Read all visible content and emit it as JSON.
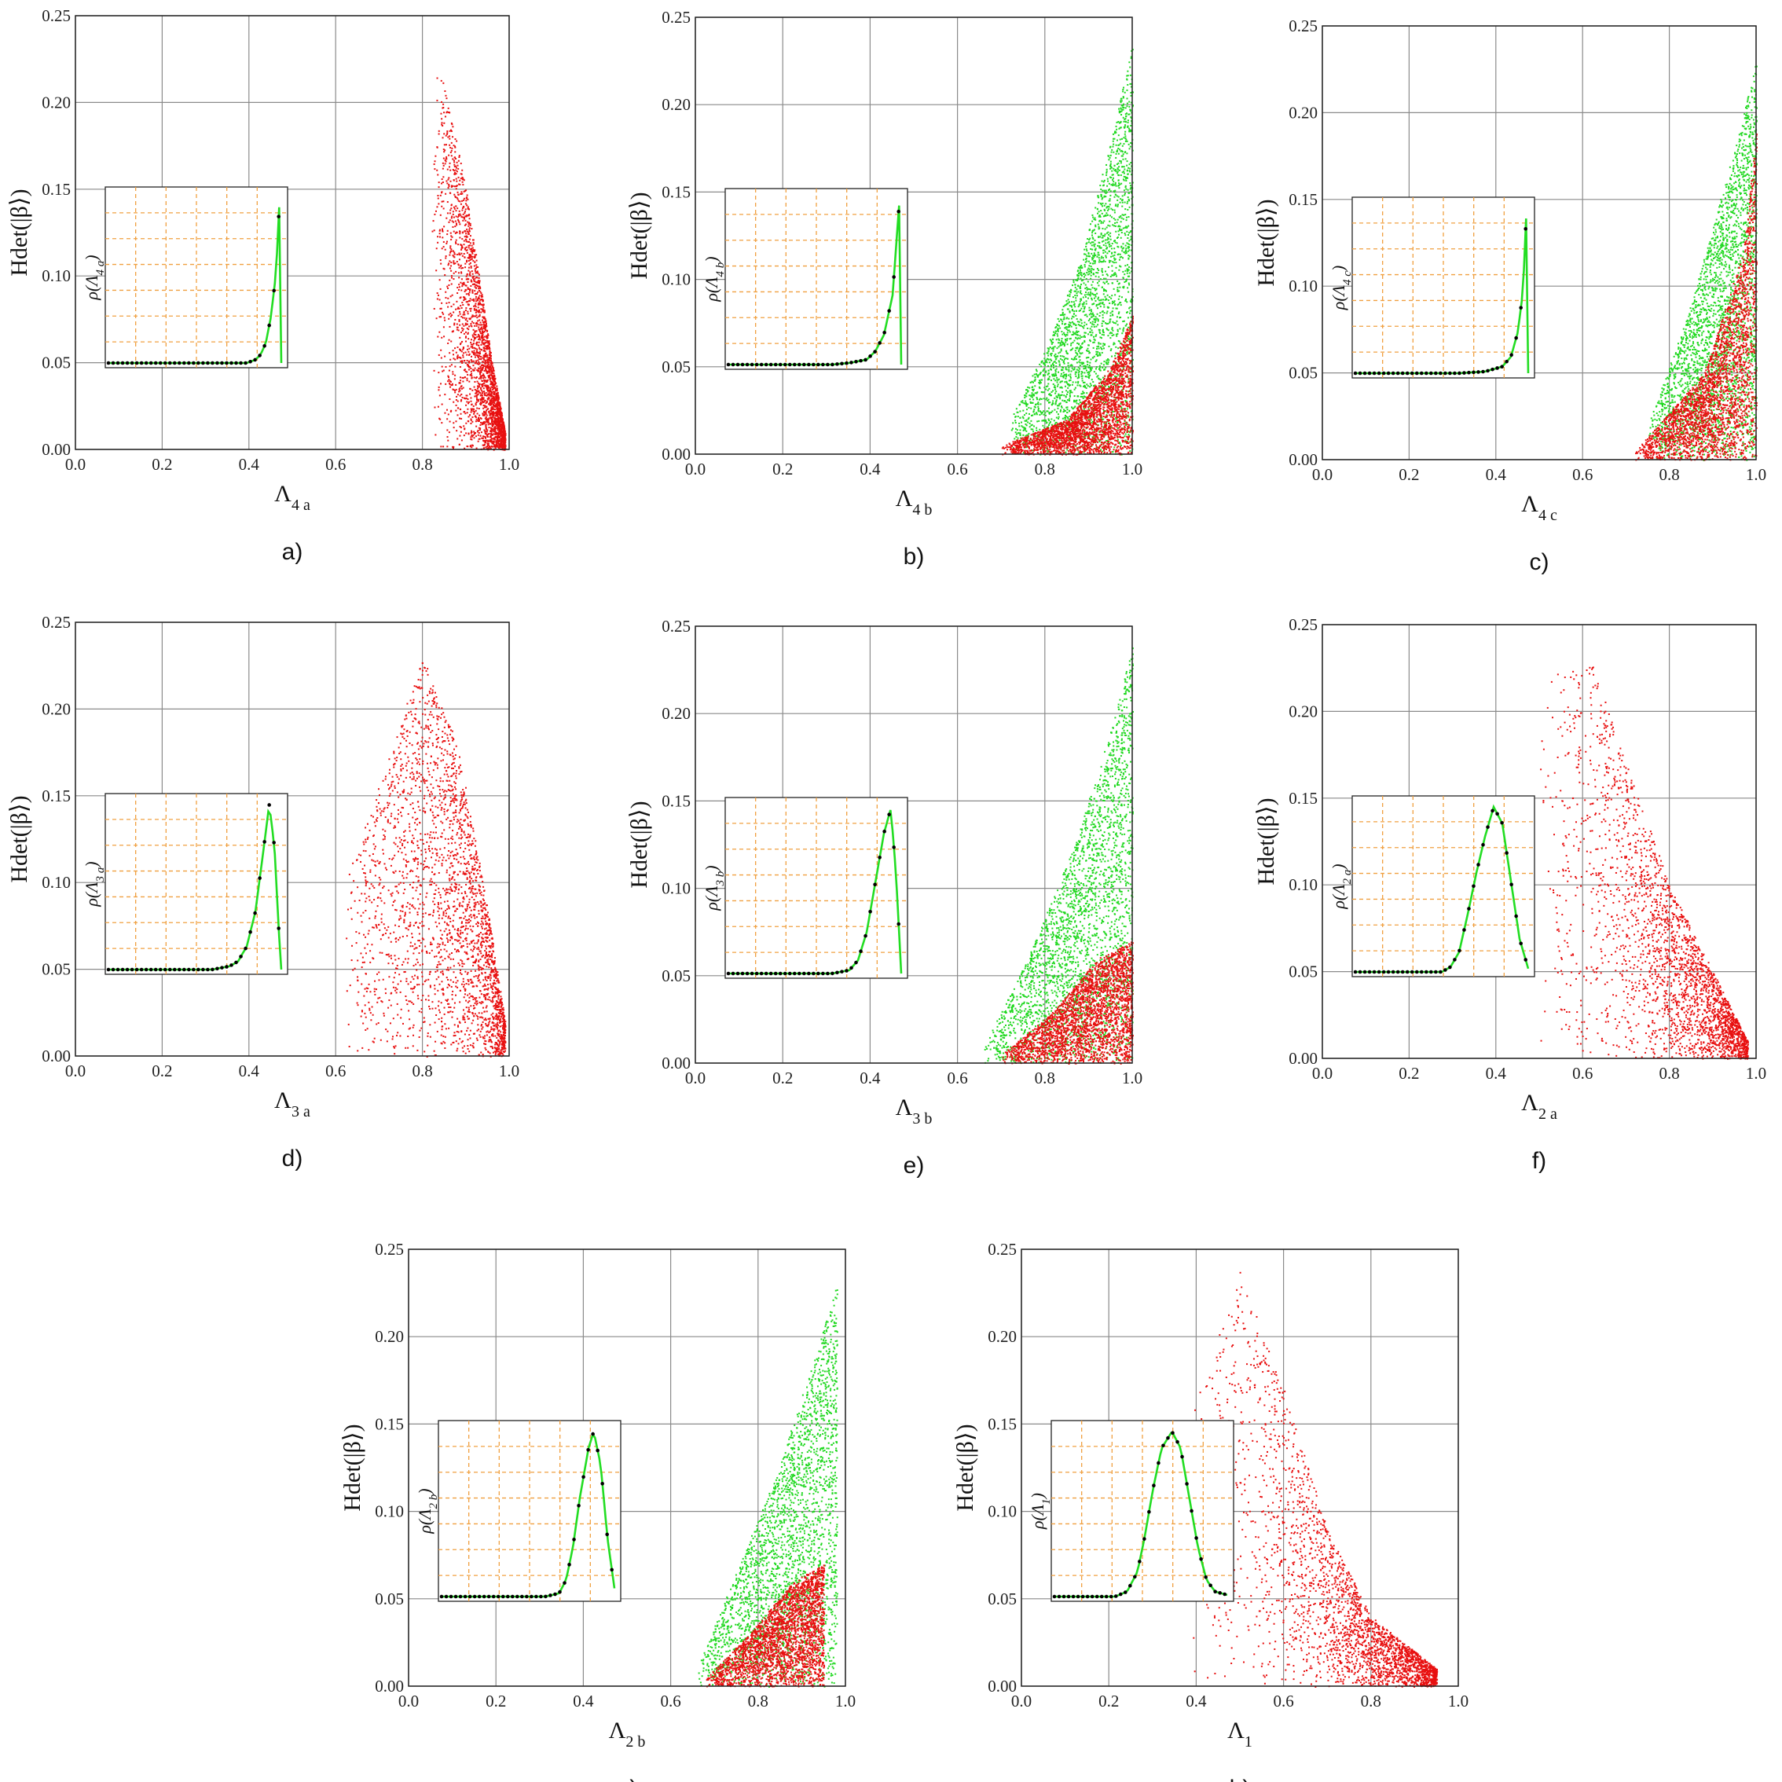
{
  "colors": {
    "grid": "#8a8a8a",
    "inset_grid": "#f0a040",
    "scatter_red": "#e81010",
    "scatter_green": "#20d820",
    "curve": "#22dd22",
    "dots": "#000000"
  },
  "chart_data": [
    {
      "type": "scatter",
      "panel_label": "a)",
      "xlabel": "Λ4 a",
      "ylabel": "Hdet(|β⟩)",
      "xlim": [
        0,
        1
      ],
      "ylim": [
        0,
        0.25
      ],
      "x_ticks": [
        "0.0",
        "0.2",
        "0.4",
        "0.6",
        "0.8",
        "1.0"
      ],
      "y_ticks": [
        "0.00",
        "0.05",
        "0.10",
        "0.15",
        "0.20",
        "0.25"
      ],
      "grid": true,
      "series": [
        {
          "color": "red",
          "points": [
            [
              0.82,
              0.235
            ],
            [
              0.86,
              0.2
            ],
            [
              0.9,
              0.15
            ],
            [
              0.93,
              0.1
            ],
            [
              0.96,
              0.05
            ],
            [
              0.99,
              0.01
            ]
          ]
        }
      ],
      "inset": {
        "ylabel": "ρ(Λ4 a)",
        "curve": [
          [
            0.0,
            0
          ],
          [
            0.1,
            0
          ],
          [
            0.2,
            0
          ],
          [
            0.3,
            0
          ],
          [
            0.4,
            0
          ],
          [
            0.5,
            0
          ],
          [
            0.6,
            0
          ],
          [
            0.7,
            0
          ],
          [
            0.8,
            0
          ],
          [
            0.85,
            0.02
          ],
          [
            0.88,
            0.05
          ],
          [
            0.91,
            0.12
          ],
          [
            0.94,
            0.28
          ],
          [
            0.97,
            0.55
          ],
          [
            0.99,
            1.0
          ],
          [
            1.0,
            0
          ]
        ]
      }
    },
    {
      "type": "scatter",
      "panel_label": "b)",
      "xlabel": "Λ4 b",
      "ylabel": "Hdet(|β⟩)",
      "xlim": [
        0,
        1
      ],
      "ylim": [
        0,
        0.25
      ],
      "x_ticks": [
        "0.0",
        "0.2",
        "0.4",
        "0.6",
        "0.8",
        "1.0"
      ],
      "y_ticks": [
        "0.00",
        "0.05",
        "0.10",
        "0.15",
        "0.20",
        "0.25"
      ],
      "grid": true,
      "series": [
        {
          "color": "green",
          "points": [
            [
              0.72,
              0.02
            ],
            [
              0.8,
              0.06
            ],
            [
              0.88,
              0.11
            ],
            [
              0.95,
              0.18
            ],
            [
              1.0,
              0.235
            ]
          ]
        },
        {
          "color": "red",
          "points": [
            [
              0.7,
              0.005
            ],
            [
              0.85,
              0.02
            ],
            [
              0.95,
              0.05
            ],
            [
              1.0,
              0.08
            ]
          ]
        }
      ],
      "inset": {
        "ylabel": "ρ(Λ4 b)",
        "curve": [
          [
            0.0,
            0
          ],
          [
            0.2,
            0
          ],
          [
            0.4,
            0
          ],
          [
            0.6,
            0
          ],
          [
            0.7,
            0.01
          ],
          [
            0.8,
            0.03
          ],
          [
            0.85,
            0.08
          ],
          [
            0.9,
            0.18
          ],
          [
            0.95,
            0.42
          ],
          [
            0.99,
            1.0
          ],
          [
            1.0,
            0
          ]
        ]
      }
    },
    {
      "type": "scatter",
      "panel_label": "c)",
      "xlabel": "Λ4 c",
      "ylabel": "Hdet(|β⟩)",
      "xlim": [
        0,
        1
      ],
      "ylim": [
        0,
        0.25
      ],
      "x_ticks": [
        "0.0",
        "0.2",
        "0.4",
        "0.6",
        "0.8",
        "1.0"
      ],
      "y_ticks": [
        "0.00",
        "0.05",
        "0.10",
        "0.15",
        "0.20",
        "0.25"
      ],
      "grid": true,
      "series": [
        {
          "color": "green",
          "points": [
            [
              0.75,
              0.02
            ],
            [
              0.85,
              0.09
            ],
            [
              0.95,
              0.18
            ],
            [
              1.0,
              0.23
            ]
          ]
        },
        {
          "color": "red",
          "points": [
            [
              0.72,
              0.005
            ],
            [
              0.88,
              0.05
            ],
            [
              0.97,
              0.12
            ],
            [
              1.0,
              0.19
            ]
          ]
        }
      ],
      "inset": {
        "ylabel": "ρ(Λ4 c)",
        "curve": [
          [
            0.0,
            0
          ],
          [
            0.2,
            0
          ],
          [
            0.4,
            0
          ],
          [
            0.6,
            0
          ],
          [
            0.75,
            0.01
          ],
          [
            0.85,
            0.04
          ],
          [
            0.9,
            0.1
          ],
          [
            0.94,
            0.25
          ],
          [
            0.97,
            0.5
          ],
          [
            0.99,
            1.0
          ],
          [
            1.0,
            0
          ]
        ]
      }
    },
    {
      "type": "scatter",
      "panel_label": "d)",
      "xlabel": "Λ3 a",
      "ylabel": "Hdet(|β⟩)",
      "xlim": [
        0,
        1
      ],
      "ylim": [
        0,
        0.25
      ],
      "x_ticks": [
        "0.0",
        "0.2",
        "0.4",
        "0.6",
        "0.8",
        "1.0"
      ],
      "y_ticks": [
        "0.00",
        "0.05",
        "0.10",
        "0.15",
        "0.20",
        "0.25"
      ],
      "grid": true,
      "series": [
        {
          "color": "red",
          "points": [
            [
              0.62,
              0.1
            ],
            [
              0.8,
              0.23
            ],
            [
              0.88,
              0.18
            ],
            [
              0.94,
              0.1
            ],
            [
              0.99,
              0.02
            ]
          ]
        }
      ],
      "inset": {
        "ylabel": "ρ(Λ3 a)",
        "curve": [
          [
            0.0,
            0
          ],
          [
            0.2,
            0
          ],
          [
            0.4,
            0
          ],
          [
            0.6,
            0
          ],
          [
            0.7,
            0.02
          ],
          [
            0.75,
            0.05
          ],
          [
            0.8,
            0.14
          ],
          [
            0.85,
            0.35
          ],
          [
            0.9,
            0.75
          ],
          [
            0.93,
            1.0
          ],
          [
            0.96,
            0.75
          ],
          [
            0.99,
            0.15
          ],
          [
            1.0,
            0
          ]
        ]
      }
    },
    {
      "type": "scatter",
      "panel_label": "e)",
      "xlabel": "Λ3 b",
      "ylabel": "Hdet(|β⟩)",
      "xlim": [
        0,
        1
      ],
      "ylim": [
        0,
        0.25
      ],
      "x_ticks": [
        "0.0",
        "0.2",
        "0.4",
        "0.6",
        "0.8",
        "1.0"
      ],
      "y_ticks": [
        "0.00",
        "0.05",
        "0.10",
        "0.15",
        "0.20",
        "0.25"
      ],
      "grid": true,
      "series": [
        {
          "color": "green",
          "points": [
            [
              0.66,
              0.01
            ],
            [
              0.76,
              0.06
            ],
            [
              0.86,
              0.12
            ],
            [
              0.95,
              0.19
            ],
            [
              1.0,
              0.24
            ]
          ]
        },
        {
          "color": "red",
          "points": [
            [
              0.7,
              0.005
            ],
            [
              0.82,
              0.03
            ],
            [
              0.92,
              0.06
            ],
            [
              1.0,
              0.07
            ]
          ]
        }
      ],
      "inset": {
        "ylabel": "ρ(Λ3 b)",
        "curve": [
          [
            0.0,
            0
          ],
          [
            0.2,
            0
          ],
          [
            0.4,
            0
          ],
          [
            0.6,
            0
          ],
          [
            0.7,
            0.02
          ],
          [
            0.75,
            0.08
          ],
          [
            0.8,
            0.25
          ],
          [
            0.85,
            0.55
          ],
          [
            0.9,
            0.85
          ],
          [
            0.94,
            1.0
          ],
          [
            0.97,
            0.6
          ],
          [
            1.0,
            0
          ]
        ]
      }
    },
    {
      "type": "scatter",
      "panel_label": "f)",
      "xlabel": "Λ2 a",
      "ylabel": "Hdet(|β⟩)",
      "xlim": [
        0,
        1
      ],
      "ylim": [
        0,
        0.25
      ],
      "x_ticks": [
        "0.0",
        "0.2",
        "0.4",
        "0.6",
        "0.8",
        "1.0"
      ],
      "y_ticks": [
        "0.00",
        "0.05",
        "0.10",
        "0.15",
        "0.20",
        "0.25"
      ],
      "grid": true,
      "series": [
        {
          "color": "red",
          "points": [
            [
              0.5,
              0.22
            ],
            [
              0.62,
              0.23
            ],
            [
              0.7,
              0.17
            ],
            [
              0.8,
              0.1
            ],
            [
              0.9,
              0.05
            ],
            [
              0.98,
              0.01
            ]
          ]
        }
      ],
      "inset": {
        "ylabel": "ρ(Λ2 a)",
        "curve": [
          [
            0.0,
            0
          ],
          [
            0.2,
            0
          ],
          [
            0.4,
            0
          ],
          [
            0.5,
            0
          ],
          [
            0.55,
            0.03
          ],
          [
            0.6,
            0.12
          ],
          [
            0.65,
            0.35
          ],
          [
            0.7,
            0.6
          ],
          [
            0.75,
            0.82
          ],
          [
            0.8,
            1.0
          ],
          [
            0.85,
            0.9
          ],
          [
            0.9,
            0.55
          ],
          [
            0.95,
            0.2
          ],
          [
            1.0,
            0.02
          ]
        ]
      }
    },
    {
      "type": "scatter",
      "panel_label": "g)",
      "xlabel": "Λ2 b",
      "ylabel": "Hdet(|β⟩)",
      "xlim": [
        0,
        1
      ],
      "ylim": [
        0,
        0.25
      ],
      "x_ticks": [
        "0.0",
        "0.2",
        "0.4",
        "0.6",
        "0.8",
        "1.0"
      ],
      "y_ticks": [
        "0.00",
        "0.05",
        "0.10",
        "0.15",
        "0.20",
        "0.25"
      ],
      "grid": true,
      "series": [
        {
          "color": "green",
          "points": [
            [
              0.66,
              0.01
            ],
            [
              0.74,
              0.06
            ],
            [
              0.84,
              0.12
            ],
            [
              0.93,
              0.19
            ],
            [
              0.98,
              0.23
            ]
          ]
        },
        {
          "color": "red",
          "points": [
            [
              0.68,
              0.005
            ],
            [
              0.78,
              0.03
            ],
            [
              0.88,
              0.06
            ],
            [
              0.95,
              0.07
            ]
          ]
        }
      ],
      "inset": {
        "ylabel": "ρ(Λ2 b)",
        "curve": [
          [
            0.0,
            0
          ],
          [
            0.2,
            0
          ],
          [
            0.4,
            0
          ],
          [
            0.6,
            0
          ],
          [
            0.68,
            0.02
          ],
          [
            0.72,
            0.1
          ],
          [
            0.76,
            0.3
          ],
          [
            0.8,
            0.6
          ],
          [
            0.85,
            0.9
          ],
          [
            0.88,
            1.0
          ],
          [
            0.92,
            0.8
          ],
          [
            0.96,
            0.35
          ],
          [
            1.0,
            0.05
          ]
        ]
      }
    },
    {
      "type": "scatter",
      "panel_label": "h)",
      "xlabel": "Λ1",
      "ylabel": "Hdet(|β⟩)",
      "xlim": [
        0,
        1
      ],
      "ylim": [
        0,
        0.25
      ],
      "x_ticks": [
        "0.0",
        "0.2",
        "0.4",
        "0.6",
        "0.8",
        "1.0"
      ],
      "y_ticks": [
        "0.00",
        "0.05",
        "0.10",
        "0.15",
        "0.20",
        "0.25"
      ],
      "grid": true,
      "series": [
        {
          "color": "red",
          "points": [
            [
              0.38,
              0.15
            ],
            [
              0.5,
              0.24
            ],
            [
              0.6,
              0.17
            ],
            [
              0.7,
              0.09
            ],
            [
              0.8,
              0.04
            ],
            [
              0.95,
              0.01
            ]
          ]
        }
      ],
      "inset": {
        "ylabel": "ρ(Λ1)",
        "curve": [
          [
            0.0,
            0
          ],
          [
            0.2,
            0
          ],
          [
            0.35,
            0
          ],
          [
            0.42,
            0.03
          ],
          [
            0.48,
            0.15
          ],
          [
            0.52,
            0.35
          ],
          [
            0.57,
            0.65
          ],
          [
            0.62,
            0.9
          ],
          [
            0.68,
            1.0
          ],
          [
            0.73,
            0.9
          ],
          [
            0.78,
            0.6
          ],
          [
            0.83,
            0.3
          ],
          [
            0.88,
            0.1
          ],
          [
            0.93,
            0.03
          ],
          [
            1.0,
            0.01
          ]
        ]
      }
    }
  ]
}
